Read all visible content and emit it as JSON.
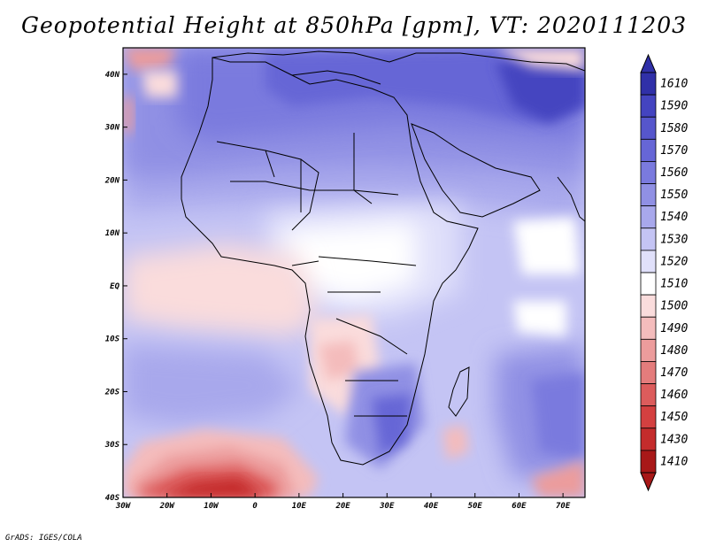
{
  "title": "Geopotential Height at 850hPa [gpm], VT: 2020111203",
  "footer": "GrADS: IGES/COLA",
  "map": {
    "region": "Africa",
    "projection": "latlon",
    "lon_range": [
      -30,
      75
    ],
    "lat_range": [
      -40,
      45
    ],
    "lat_labels": [
      "40N",
      "30N",
      "20N",
      "10N",
      "EQ",
      "10S",
      "20S",
      "30S",
      "40S"
    ],
    "lon_labels": [
      "30W",
      "20W",
      "10W",
      "0",
      "10E",
      "20E",
      "30E",
      "40E",
      "50E",
      "60E",
      "70E"
    ]
  },
  "colorbar": {
    "labels": [
      "1610",
      "1590",
      "1580",
      "1570",
      "1560",
      "1550",
      "1540",
      "1530",
      "1520",
      "1510",
      "1500",
      "1490",
      "1480",
      "1470",
      "1460",
      "1450",
      "1430",
      "1410"
    ],
    "colors": [
      "#3030a8",
      "#4444c0",
      "#5656cc",
      "#6666d6",
      "#7a7ade",
      "#9090e4",
      "#a8a8ec",
      "#c4c4f4",
      "#e0e0fa",
      "#ffffff",
      "#fadcdc",
      "#f4bcbc",
      "#ec9c9c",
      "#e47c7c",
      "#dc5c5c",
      "#d44040",
      "#c42c2c",
      "#a81818"
    ]
  }
}
